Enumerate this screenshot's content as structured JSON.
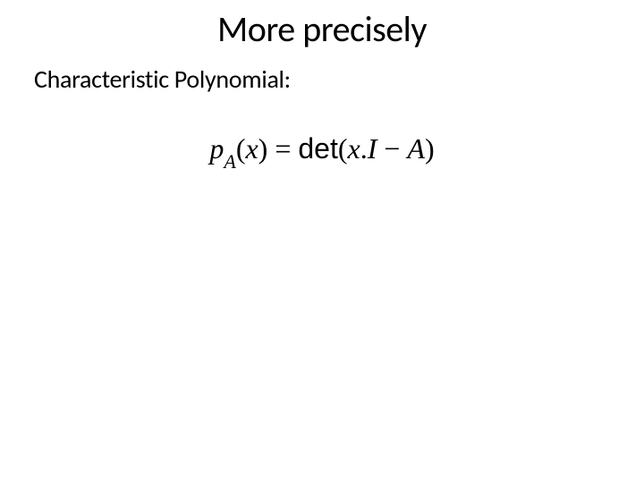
{
  "slide": {
    "title": "More precisely",
    "subtitle": "Characteristic Polynomial:",
    "title_fontsize": 40,
    "subtitle_fontsize": 28,
    "title_color": "#000000",
    "subtitle_color": "#000000",
    "background_color": "#ffffff"
  },
  "equation": {
    "p": "p",
    "sub_A": "A",
    "open_paren1": "(",
    "x1": "x",
    "close_paren1": ")",
    "equals": " = ",
    "det": "det",
    "open_paren2": "(",
    "x2": "x",
    "dot": ".",
    "I": "I",
    "minus": " − ",
    "A2": "A",
    "close_paren2": ")",
    "fontsize": 32,
    "color": "#000000",
    "font_family_serif": "Times New Roman",
    "font_family_sans": "Arial"
  }
}
